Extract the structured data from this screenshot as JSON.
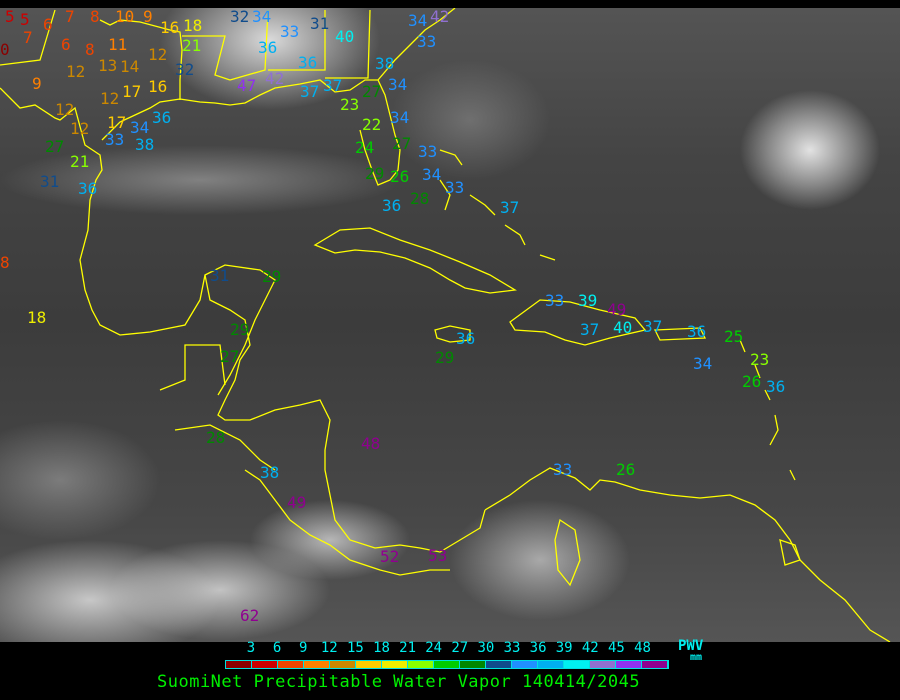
{
  "title": "SuomiNet Precipitable Water Vapor 140414/2045",
  "legend": {
    "unit_label": "PWV",
    "unit": "mm",
    "ticks": [
      "3",
      "6",
      "9",
      "12",
      "15",
      "18",
      "21",
      "24",
      "27",
      "30",
      "33",
      "36",
      "39",
      "42",
      "45",
      "48"
    ],
    "colors": [
      "#8b0000",
      "#cc0000",
      "#ee4400",
      "#ff8000",
      "#cc8800",
      "#ffcc00",
      "#eeee00",
      "#88ff00",
      "#00cc00",
      "#008800",
      "#104c8c",
      "#2090ff",
      "#00b0f0",
      "#00f0f0",
      "#9070d0",
      "#9030f0",
      "#900090"
    ]
  },
  "colors": {
    "coastline": "#ffff00",
    "background": "#000000"
  },
  "stations": [
    "5",
    "5",
    "7",
    "6",
    "8",
    "0",
    "7",
    "6",
    "8",
    "10",
    "9",
    "16",
    "18",
    "11",
    "12",
    "9",
    "12",
    "13",
    "14",
    "16",
    "21",
    "32",
    "12",
    "17",
    "12",
    "12",
    "17",
    "21",
    "27",
    "33",
    "34",
    "36",
    "38",
    "36",
    "31",
    "8",
    "18",
    "32",
    "34",
    "33",
    "31",
    "36",
    "36",
    "40",
    "42",
    "33",
    "34",
    "47",
    "42",
    "37",
    "37",
    "23",
    "27",
    "22",
    "34",
    "34",
    "38",
    "24",
    "27",
    "26",
    "33",
    "29",
    "36",
    "28",
    "34",
    "33",
    "37",
    "31",
    "29",
    "29",
    "27",
    "28",
    "38",
    "48",
    "49",
    "52",
    "53",
    "62",
    "36",
    "29",
    "33",
    "39",
    "37",
    "40",
    "49",
    "37",
    "36",
    "34",
    "25",
    "23",
    "26",
    "36",
    "33",
    "26"
  ]
}
